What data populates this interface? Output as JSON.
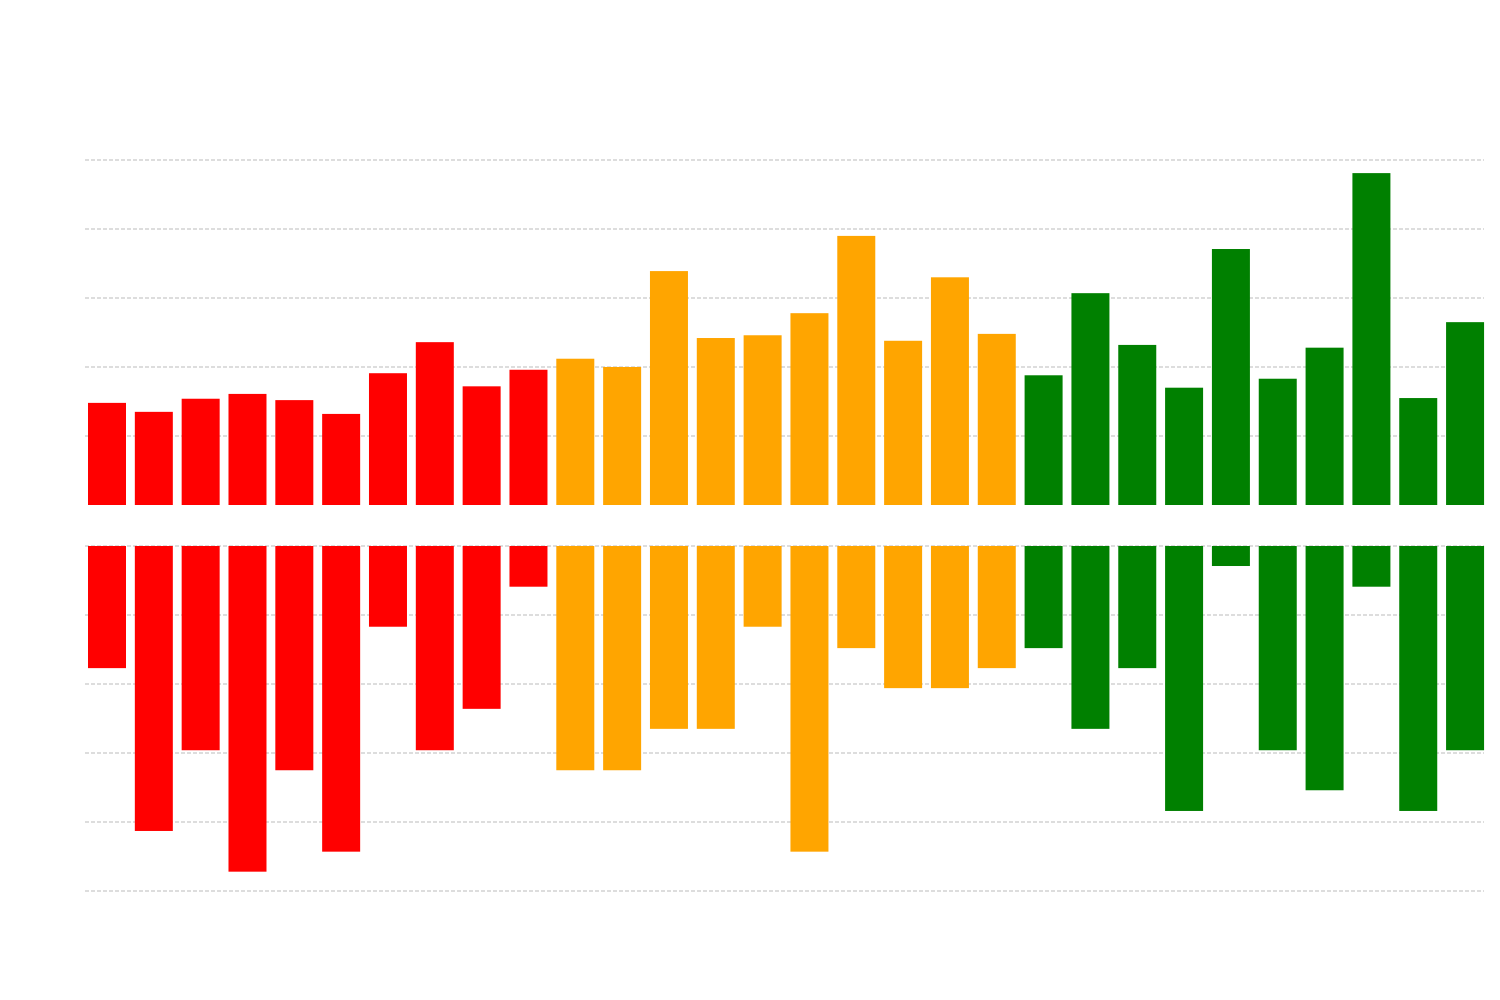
{
  "chart_data": [
    {
      "type": "bar",
      "direction": "up",
      "grid": true,
      "grid_style": "dashed",
      "ylim": [
        0,
        5
      ],
      "colors": [
        "#ff0000",
        "#ff0000",
        "#ff0000",
        "#ff0000",
        "#ff0000",
        "#ff0000",
        "#ff0000",
        "#ff0000",
        "#ff0000",
        "#ff0000",
        "#ffa500",
        "#ffa500",
        "#ffa500",
        "#ffa500",
        "#ffa500",
        "#ffa500",
        "#ffa500",
        "#ffa500",
        "#ffa500",
        "#ffa500",
        "#008000",
        "#008000",
        "#008000",
        "#008000",
        "#008000",
        "#008000",
        "#008000",
        "#008000",
        "#008000",
        "#008000"
      ],
      "values": [
        1.48,
        1.35,
        1.54,
        1.61,
        1.52,
        1.32,
        1.91,
        2.36,
        1.72,
        1.96,
        2.12,
        2.0,
        3.39,
        2.42,
        2.46,
        2.78,
        3.9,
        2.38,
        3.3,
        2.48,
        1.88,
        3.07,
        2.32,
        1.7,
        3.71,
        1.83,
        2.28,
        4.81,
        1.55,
        2.65
      ]
    },
    {
      "type": "bar",
      "direction": "down",
      "grid": true,
      "grid_style": "dashed",
      "ylim": [
        0,
        5
      ],
      "colors": [
        "#ff0000",
        "#ff0000",
        "#ff0000",
        "#ff0000",
        "#ff0000",
        "#ff0000",
        "#ff0000",
        "#ff0000",
        "#ff0000",
        "#ff0000",
        "#ffa500",
        "#ffa500",
        "#ffa500",
        "#ffa500",
        "#ffa500",
        "#ffa500",
        "#ffa500",
        "#ffa500",
        "#ffa500",
        "#ffa500",
        "#008000",
        "#008000",
        "#008000",
        "#008000",
        "#008000",
        "#008000",
        "#008000",
        "#008000",
        "#008000",
        "#008000"
      ],
      "values": [
        1.77,
        4.13,
        2.96,
        4.72,
        3.25,
        4.43,
        1.17,
        2.96,
        2.36,
        0.59,
        3.25,
        3.25,
        2.65,
        2.65,
        1.17,
        4.43,
        1.48,
        2.06,
        2.06,
        1.77,
        1.48,
        2.65,
        1.77,
        3.84,
        0.29,
        2.96,
        3.54,
        0.59,
        3.84,
        2.96
      ]
    }
  ]
}
